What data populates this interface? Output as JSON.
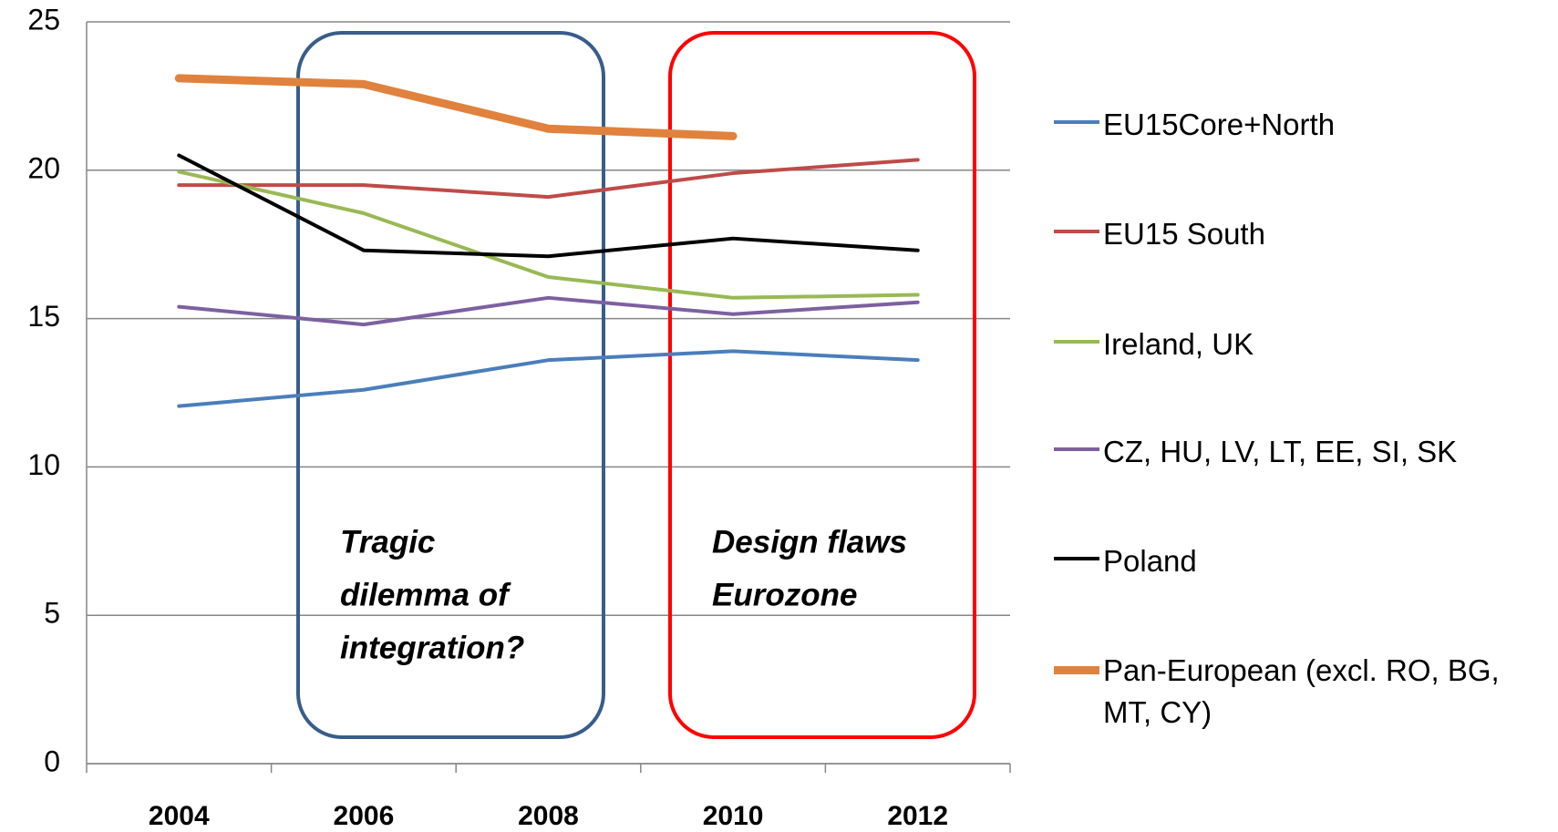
{
  "chart_data": {
    "type": "line",
    "categories": [
      "2004",
      "2006",
      "2008",
      "2010",
      "2012"
    ],
    "series": [
      {
        "name": "EU15Core+North",
        "color": "#4a7ebb",
        "values": [
          12.05,
          12.6,
          13.6,
          13.9,
          13.6
        ]
      },
      {
        "name": "EU15 South",
        "color": "#be4b48",
        "values": [
          19.5,
          19.5,
          19.1,
          19.9,
          20.35
        ]
      },
      {
        "name": "Ireland, UK",
        "color": "#98b954",
        "values": [
          19.95,
          18.55,
          16.4,
          15.7,
          15.8
        ]
      },
      {
        "name": "CZ, HU, LV, LT, EE, SI, SK",
        "color": "#7d60a0",
        "values": [
          15.4,
          14.8,
          15.7,
          15.15,
          15.55
        ]
      },
      {
        "name": "Poland",
        "color": "#000000",
        "values": [
          20.5,
          17.3,
          17.1,
          17.7,
          17.3
        ]
      },
      {
        "name": "Pan-European (excl. RO, BG, MT, CY)",
        "color": "#e0823d",
        "values": [
          23.1,
          22.9,
          21.4,
          21.15,
          null
        ],
        "line_width": 9
      }
    ],
    "ylim": [
      0,
      25
    ],
    "yticks": [
      0,
      5,
      10,
      15,
      20,
      25
    ],
    "grid": true,
    "annotations": [
      {
        "lines": [
          "Tragic",
          "dilemma of",
          "integration?"
        ],
        "color": "#385d8a"
      },
      {
        "lines": [
          "Design flaws",
          "Eurozone"
        ],
        "color": "#ff0000"
      }
    ]
  }
}
